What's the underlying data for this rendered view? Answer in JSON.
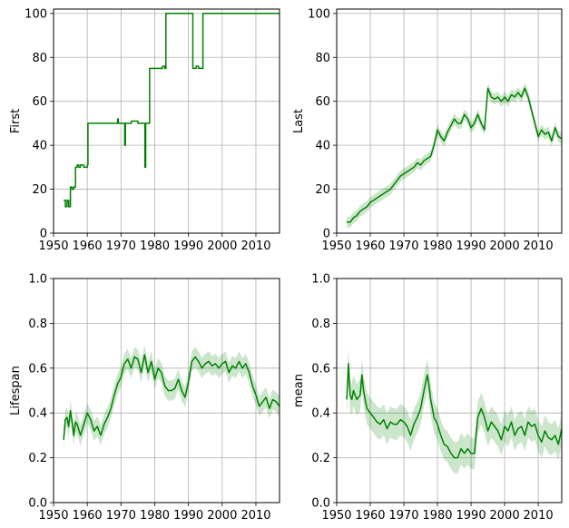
{
  "chart_data": [
    {
      "type": "line",
      "ylabel": "First",
      "xlim": [
        1950,
        2017
      ],
      "ylim": [
        0,
        102
      ],
      "xticks": [
        1950,
        1960,
        1970,
        1980,
        1990,
        2000,
        2010
      ],
      "yticks": [
        0,
        20,
        40,
        60,
        80,
        100
      ],
      "tick_labels_x": [
        "1950",
        "1960",
        "1970",
        "1980",
        "1990",
        "2000",
        "2010"
      ],
      "tick_labels_y": [
        "0",
        "20",
        "40",
        "60",
        "80",
        "100"
      ],
      "grid": true,
      "color": "#008000",
      "step": true,
      "series": [
        {
          "x": [
            1953,
            1953.5,
            1954,
            1954.5,
            1955,
            1955.5,
            1956,
            1956.5,
            1957,
            1957.5,
            1958,
            1959,
            1960,
            1960.2,
            1965,
            1968.8,
            1969,
            1969.2,
            1970,
            1971,
            1971.1,
            1971.3,
            1972,
            1973,
            1973.1,
            1975,
            1977,
            1977.1,
            1977.3,
            1978,
            1978.5,
            1982,
            1982.3,
            1983,
            1983.3,
            1990,
            1991,
            1991.3,
            1992,
            1992.3,
            1993,
            1994,
            1994.3,
            2000,
            2017
          ],
          "y": [
            15,
            12,
            15,
            12,
            21,
            20,
            21,
            30,
            31,
            30,
            31,
            30,
            31,
            50,
            50,
            50,
            52,
            50,
            50,
            50,
            40,
            50,
            50,
            50,
            51,
            50,
            50,
            30,
            50,
            50,
            75,
            75,
            76,
            75,
            100,
            100,
            100,
            75,
            75,
            76,
            75,
            75,
            100,
            100,
            100
          ]
        }
      ]
    },
    {
      "type": "line",
      "ylabel": "Last",
      "xlim": [
        1950,
        2017
      ],
      "ylim": [
        0,
        102
      ],
      "xticks": [
        1950,
        1960,
        1970,
        1980,
        1990,
        2000,
        2010
      ],
      "yticks": [
        0,
        20,
        40,
        60,
        80,
        100
      ],
      "tick_labels_x": [
        "1950",
        "1960",
        "1970",
        "1980",
        "1990",
        "2000",
        "2010"
      ],
      "tick_labels_y": [
        "0",
        "20",
        "40",
        "60",
        "80",
        "100"
      ],
      "grid": true,
      "color": "#008000",
      "band_halfwidth": 2.5,
      "series": [
        {
          "x": [
            1953,
            1954,
            1955,
            1956,
            1957,
            1958,
            1959,
            1960,
            1961,
            1962,
            1963,
            1964,
            1965,
            1966,
            1967,
            1968,
            1969,
            1970,
            1971,
            1972,
            1973,
            1974,
            1975,
            1976,
            1977,
            1978,
            1979,
            1980,
            1981,
            1982,
            1983,
            1984,
            1985,
            1986,
            1987,
            1988,
            1989,
            1990,
            1991,
            1992,
            1993,
            1994,
            1995,
            1996,
            1997,
            1998,
            1999,
            2000,
            2001,
            2002,
            2003,
            2004,
            2005,
            2006,
            2007,
            2008,
            2009,
            2010,
            2011,
            2012,
            2013,
            2014,
            2015,
            2016,
            2017
          ],
          "y": [
            5,
            5,
            7,
            8,
            10,
            11,
            12,
            14,
            15,
            16,
            17,
            18,
            19,
            20,
            22,
            24,
            26,
            27,
            28,
            29,
            30,
            32,
            31,
            33,
            34,
            35,
            40,
            47,
            44,
            42,
            46,
            49,
            52,
            50,
            50,
            54,
            52,
            48,
            50,
            54,
            50,
            47,
            66,
            62,
            61,
            62,
            60,
            62,
            60,
            63,
            62,
            64,
            62,
            66,
            62,
            56,
            50,
            44,
            47,
            45,
            46,
            42,
            48,
            44,
            43
          ]
        }
      ]
    },
    {
      "type": "line",
      "ylabel": "Lifespan",
      "xlim": [
        1950,
        2017
      ],
      "ylim": [
        0,
        1.0
      ],
      "xticks": [
        1950,
        1960,
        1970,
        1980,
        1990,
        2000,
        2010
      ],
      "yticks": [
        0,
        0.2,
        0.4,
        0.6,
        0.8,
        1.0
      ],
      "tick_labels_x": [
        "1950",
        "1960",
        "1970",
        "1980",
        "1990",
        "2000",
        "2010"
      ],
      "tick_labels_y": [
        "0.0",
        "0.2",
        "0.4",
        "0.6",
        "0.8",
        "1.0"
      ],
      "grid": true,
      "color": "#008000",
      "band_halfwidth": 0.045,
      "series": [
        {
          "x": [
            1953,
            1953.5,
            1954,
            1954.5,
            1955,
            1955.5,
            1956,
            1956.5,
            1957,
            1958,
            1959,
            1960,
            1961,
            1962,
            1963,
            1964,
            1965,
            1966,
            1967,
            1968,
            1969,
            1970,
            1971,
            1972,
            1973,
            1974,
            1975,
            1976,
            1977,
            1978,
            1979,
            1980,
            1981,
            1982,
            1983,
            1984,
            1985,
            1986,
            1987,
            1988,
            1989,
            1990,
            1991,
            1992,
            1993,
            1994,
            1995,
            1996,
            1997,
            1998,
            1999,
            2000,
            2001,
            2002,
            2003,
            2004,
            2005,
            2006,
            2007,
            2008,
            2009,
            2010,
            2011,
            2012,
            2013,
            2014,
            2015,
            2016,
            2017
          ],
          "y": [
            0.28,
            0.37,
            0.38,
            0.34,
            0.41,
            0.36,
            0.3,
            0.36,
            0.35,
            0.3,
            0.35,
            0.4,
            0.37,
            0.32,
            0.34,
            0.3,
            0.35,
            0.38,
            0.42,
            0.48,
            0.53,
            0.56,
            0.62,
            0.64,
            0.6,
            0.65,
            0.64,
            0.58,
            0.66,
            0.58,
            0.63,
            0.55,
            0.6,
            0.58,
            0.52,
            0.5,
            0.5,
            0.51,
            0.55,
            0.5,
            0.47,
            0.54,
            0.63,
            0.65,
            0.63,
            0.6,
            0.62,
            0.63,
            0.61,
            0.62,
            0.6,
            0.62,
            0.63,
            0.58,
            0.61,
            0.6,
            0.63,
            0.6,
            0.62,
            0.58,
            0.52,
            0.48,
            0.43,
            0.45,
            0.47,
            0.42,
            0.46,
            0.45,
            0.43
          ]
        }
      ]
    },
    {
      "type": "line",
      "ylabel": "mean",
      "xlim": [
        1950,
        2017
      ],
      "ylim": [
        0,
        1.0
      ],
      "xticks": [
        1950,
        1960,
        1970,
        1980,
        1990,
        2000,
        2010
      ],
      "yticks": [
        0,
        0.2,
        0.4,
        0.6,
        0.8,
        1.0
      ],
      "tick_labels_x": [
        "1950",
        "1960",
        "1970",
        "1980",
        "1990",
        "2000",
        "2010"
      ],
      "tick_labels_y": [
        "0.0",
        "0.2",
        "0.4",
        "0.6",
        "0.8",
        "1.0"
      ],
      "grid": true,
      "color": "#008000",
      "band_halfwidth": 0.07,
      "series": [
        {
          "x": [
            1953,
            1953.5,
            1954,
            1954.5,
            1955,
            1956,
            1957,
            1957.5,
            1958,
            1959,
            1960,
            1961,
            1962,
            1963,
            1964,
            1965,
            1966,
            1967,
            1968,
            1969,
            1970,
            1971,
            1972,
            1973,
            1974,
            1975,
            1976,
            1977,
            1977.5,
            1978,
            1979,
            1980,
            1981,
            1982,
            1983,
            1984,
            1985,
            1986,
            1987,
            1988,
            1989,
            1990,
            1991,
            1992,
            1993,
            1994,
            1995,
            1996,
            1997,
            1998,
            1999,
            2000,
            2001,
            2002,
            2003,
            2004,
            2005,
            2006,
            2007,
            2008,
            2009,
            2010,
            2011,
            2012,
            2013,
            2014,
            2015,
            2016,
            2017
          ],
          "y": [
            0.46,
            0.62,
            0.48,
            0.46,
            0.5,
            0.46,
            0.48,
            0.57,
            0.5,
            0.42,
            0.4,
            0.38,
            0.36,
            0.35,
            0.37,
            0.33,
            0.36,
            0.35,
            0.35,
            0.37,
            0.36,
            0.34,
            0.3,
            0.35,
            0.38,
            0.42,
            0.5,
            0.57,
            0.52,
            0.46,
            0.38,
            0.35,
            0.3,
            0.26,
            0.25,
            0.22,
            0.2,
            0.2,
            0.24,
            0.22,
            0.24,
            0.22,
            0.22,
            0.38,
            0.42,
            0.38,
            0.32,
            0.36,
            0.34,
            0.32,
            0.28,
            0.34,
            0.32,
            0.36,
            0.3,
            0.33,
            0.34,
            0.3,
            0.36,
            0.34,
            0.35,
            0.3,
            0.27,
            0.32,
            0.29,
            0.28,
            0.3,
            0.26,
            0.33
          ]
        }
      ]
    }
  ]
}
